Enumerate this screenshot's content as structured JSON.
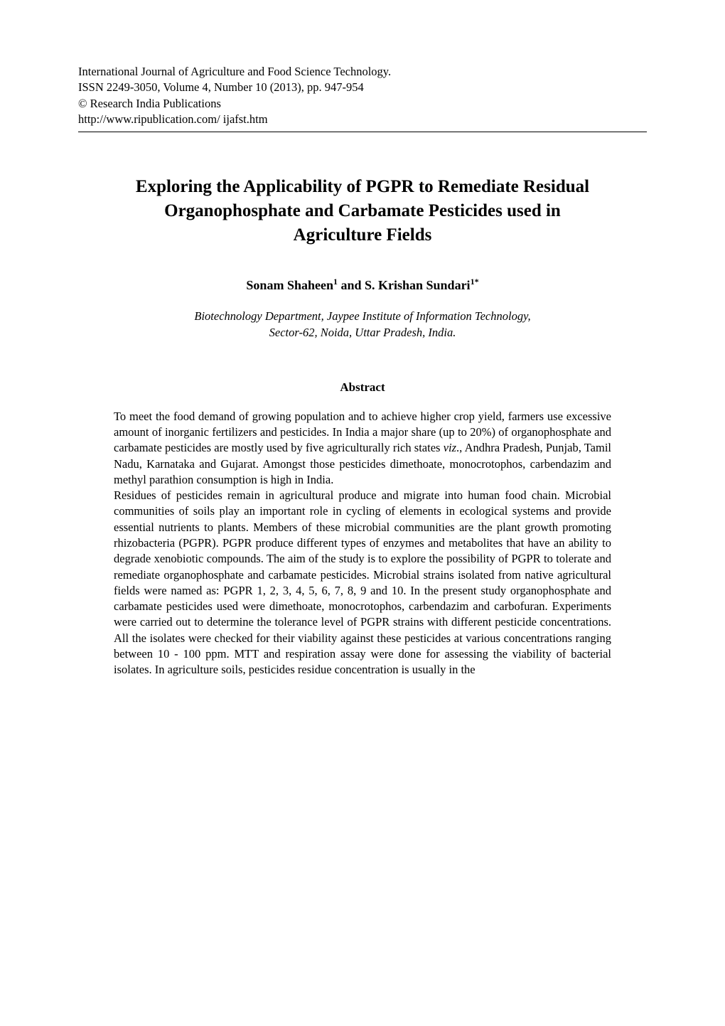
{
  "header": {
    "journal": "International Journal of Agriculture and Food Science Technology.",
    "issn": "ISSN 2249-3050, Volume 4, Number 10 (2013), pp. 947-954",
    "publisher": "© Research India Publications",
    "url": "http://www.ripublication.com/ ijafst.htm"
  },
  "title": {
    "line1": "Exploring the Applicability of PGPR to Remediate Residual",
    "line2": "Organophosphate and Carbamate Pesticides used in",
    "line3": "Agriculture Fields"
  },
  "authors": {
    "a1_name": "Sonam Shaheen",
    "a1_sup": "1",
    "and": " and ",
    "a2_name": "S. Krishan Sundari",
    "a2_sup": "1*"
  },
  "affiliation": {
    "line1": "Biotechnology Department, Jaypee Institute of Information Technology,",
    "line2": "Sector-62, Noida, Uttar Pradesh, India."
  },
  "abstract": {
    "heading": "Abstract",
    "p1_part1": "To meet the food demand of growing population and to achieve higher crop yield, farmers use excessive amount of inorganic fertilizers and pesticides. In India a major share (up to 20%) of organophosphate and carbamate pesticides are mostly used by five agriculturally rich states ",
    "p1_viz": "viz",
    "p1_part2": "., Andhra Pradesh, Punjab, Tamil Nadu, Karnataka and Gujarat. Amongst those pesticides dimethoate, monocrotophos, carbendazim and methyl parathion consumption is high in India.",
    "p2": "Residues of pesticides remain in agricultural produce and migrate into human food chain. Microbial communities of soils play an important role in cycling of elements in ecological systems and provide essential nutrients to plants. Members of these microbial communities are the plant growth promoting rhizobacteria (PGPR). PGPR produce different types of enzymes and metabolites that have an ability to degrade xenobiotic compounds. The aim of the study is to explore the possibility of PGPR to tolerate and remediate organophosphate and carbamate pesticides. Microbial strains isolated from native agricultural fields were named as: PGPR 1, 2, 3, 4, 5, 6, 7, 8, 9 and 10. In the present study organophosphate and carbamate pesticides used were dimethoate, monocrotophos, carbendazim and carbofuran. Experiments were carried out to determine the tolerance level of PGPR strains with different pesticide concentrations. All the isolates were checked for their viability against these pesticides at various concentrations ranging between 10 - 100 ppm. MTT and respiration assay were done for assessing the viability of bacterial isolates. In agriculture soils, pesticides residue concentration is usually in the"
  }
}
